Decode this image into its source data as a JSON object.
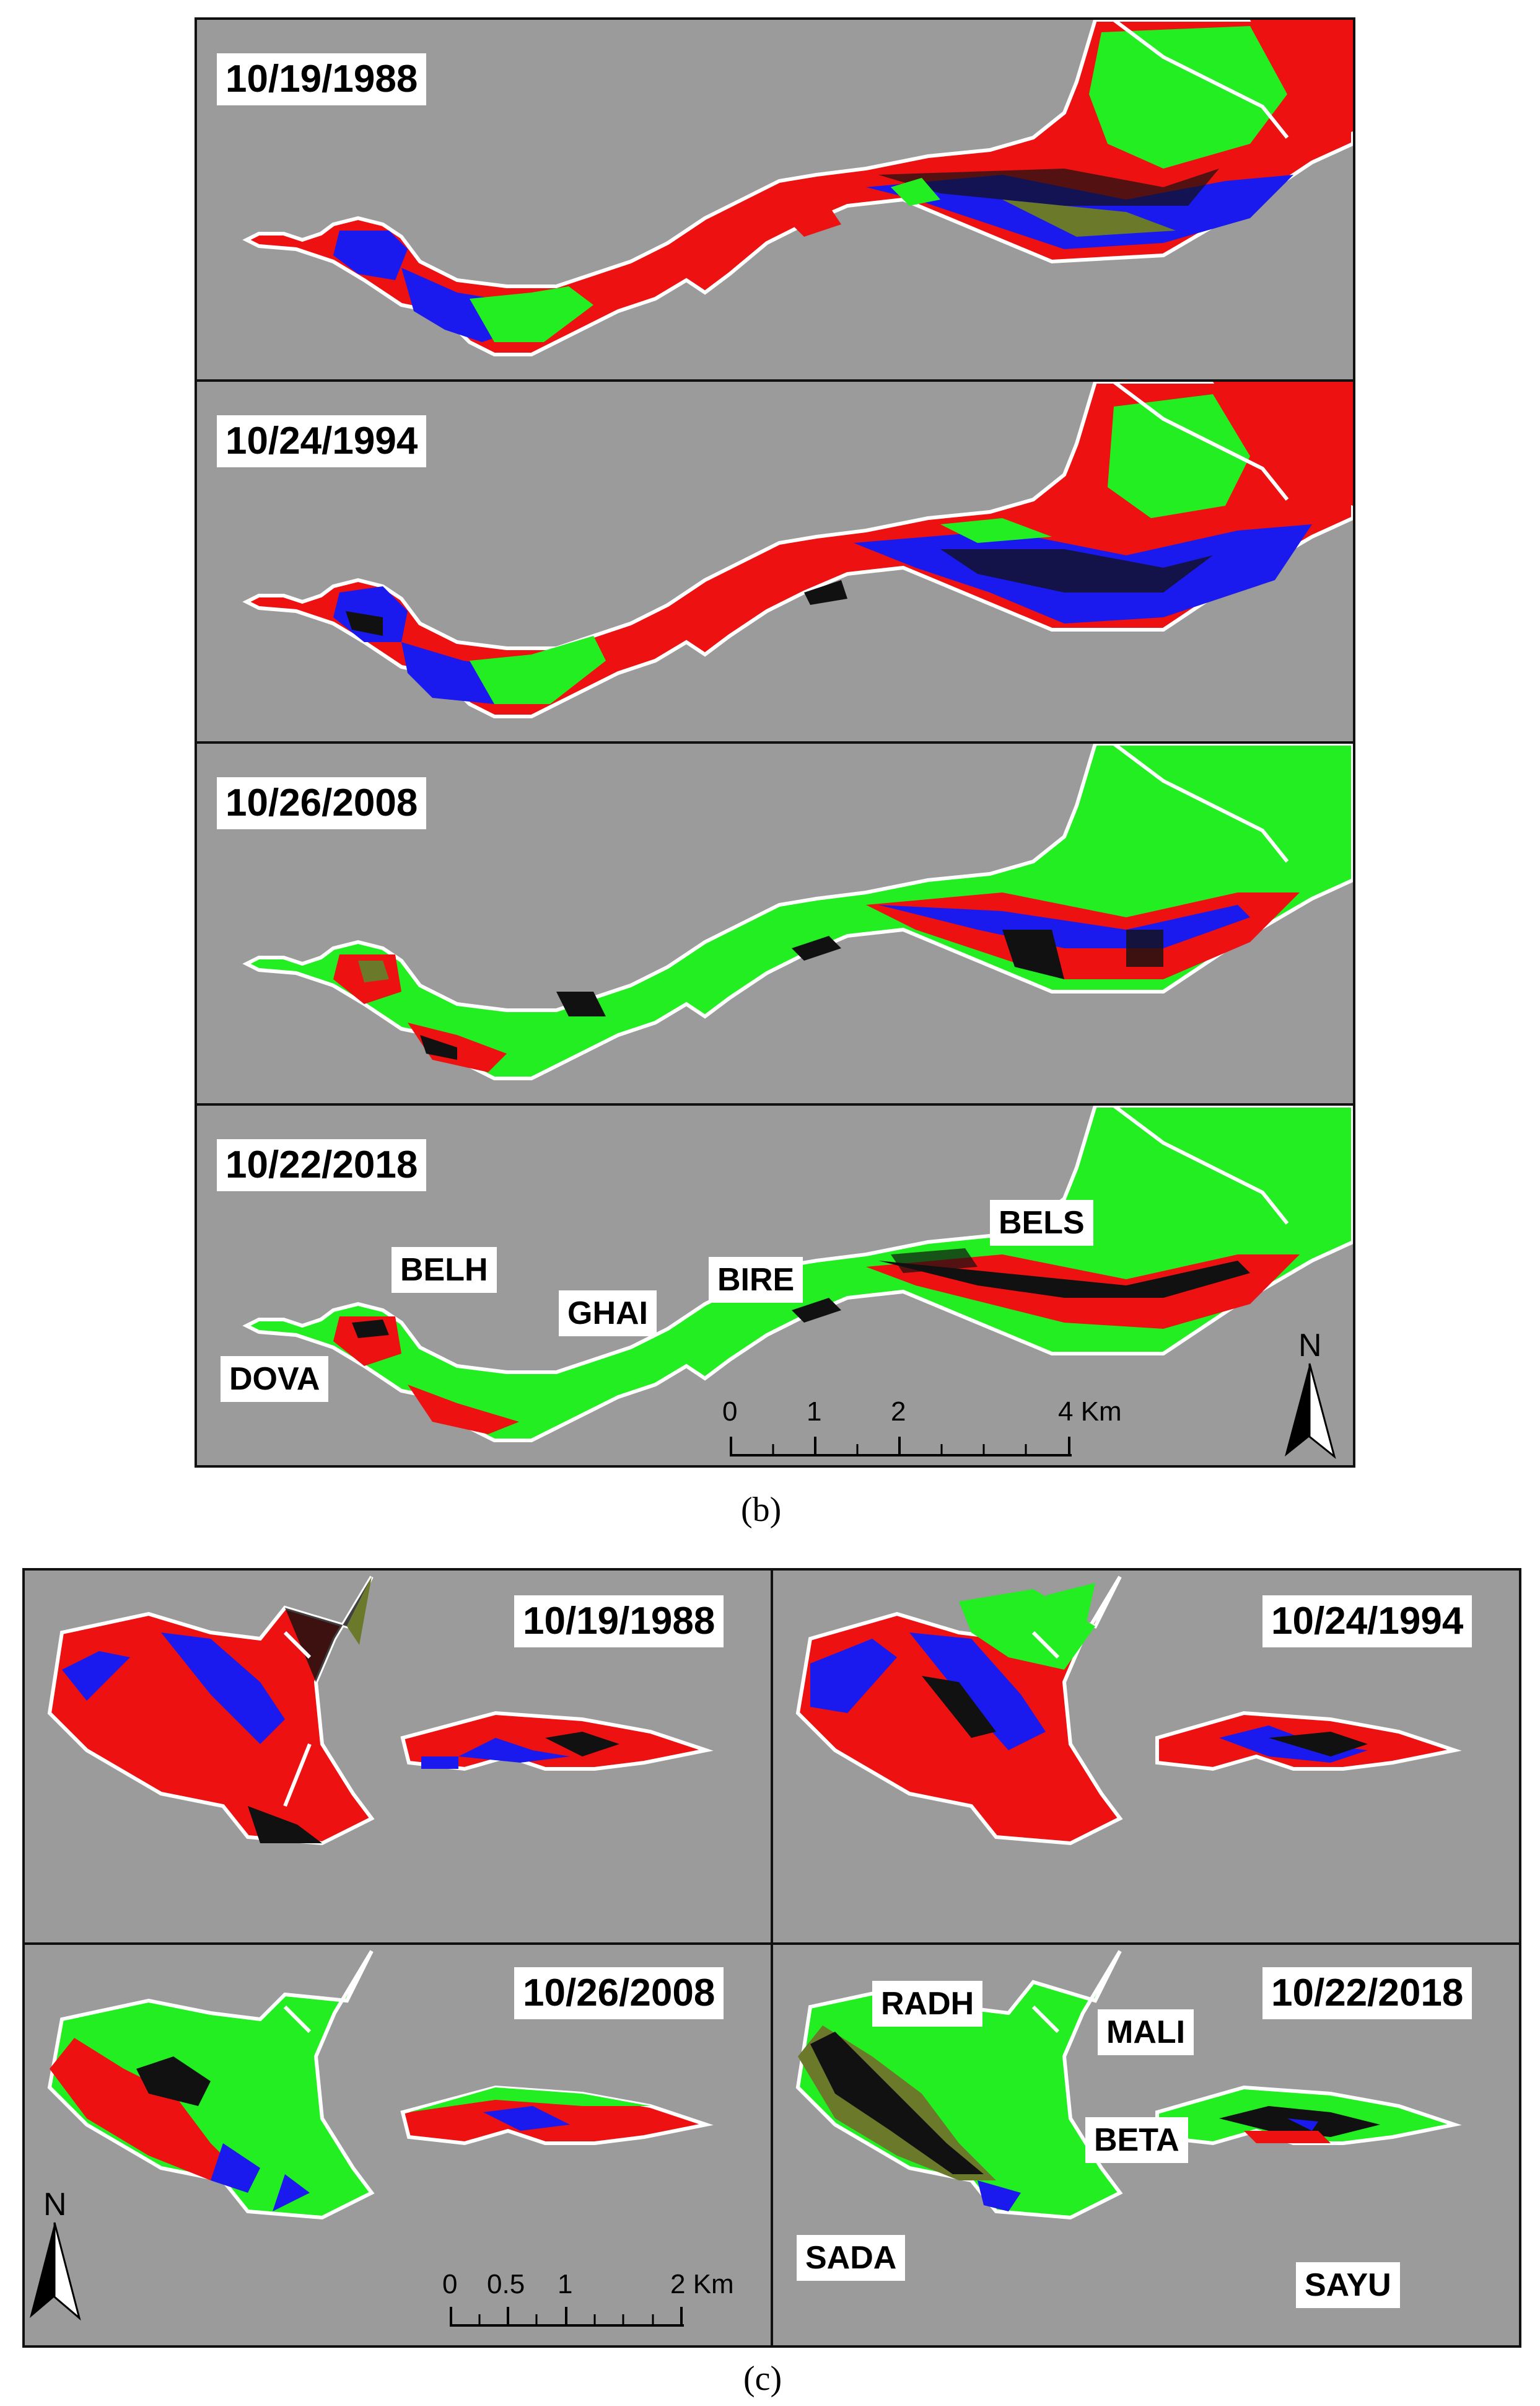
{
  "figure_b": {
    "caption": "(b)",
    "panels": [
      {
        "date": "10/19/1988"
      },
      {
        "date": "10/24/1994"
      },
      {
        "date": "10/26/2008"
      },
      {
        "date": "10/22/2018"
      }
    ],
    "site_labels": [
      "DOVA",
      "BELH",
      "GHAI",
      "BIRE",
      "BELS"
    ],
    "scale_bar": {
      "ticks": [
        "0",
        "1",
        "2",
        "4 Km"
      ]
    },
    "north_arrow": "N"
  },
  "figure_c": {
    "caption": "(c)",
    "panels": [
      {
        "date": "10/19/1988"
      },
      {
        "date": "10/24/1994"
      },
      {
        "date": "10/26/2008"
      },
      {
        "date": "10/22/2018"
      }
    ],
    "site_labels": [
      "RADH",
      "MALI",
      "BETA",
      "SADA",
      "SAYU"
    ],
    "scale_bar": {
      "ticks": [
        "0",
        "0.5",
        "1",
        "2 Km"
      ]
    },
    "north_arrow": "N"
  },
  "colors": {
    "background": "#9b9b9b",
    "green": "#22ee22",
    "red": "#ee1111",
    "blue": "#1a1aee",
    "black": "#111111",
    "olive": "#6b7a2a",
    "outline": "#ffffff"
  }
}
